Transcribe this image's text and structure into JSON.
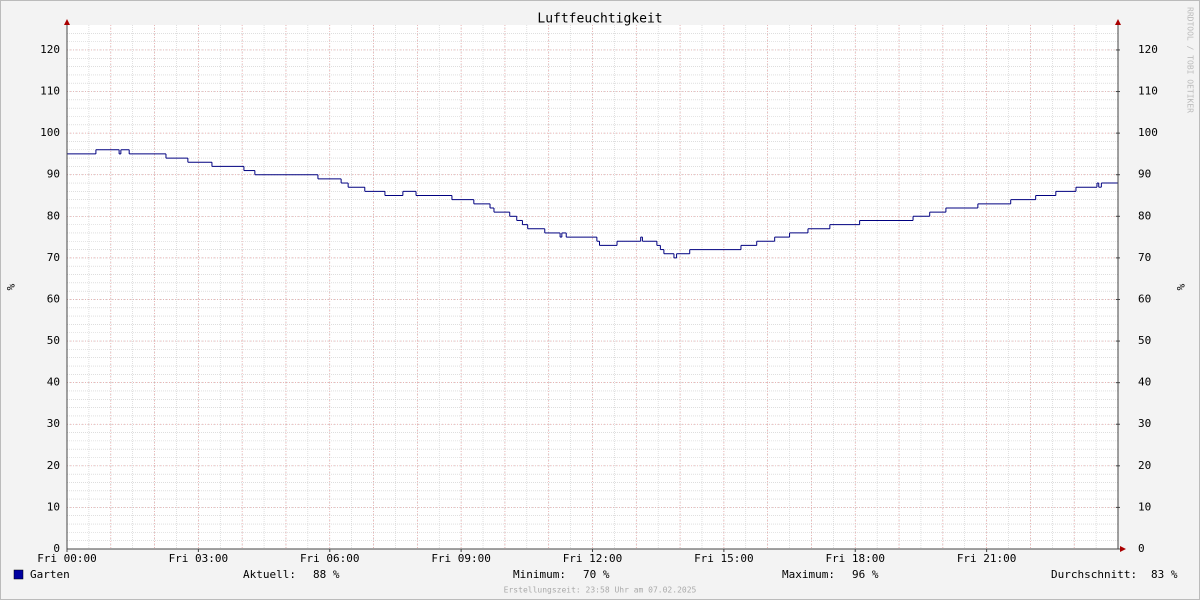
{
  "chart_data": {
    "type": "line",
    "title": "Luftfeuchtigkeit",
    "ylabel": "%",
    "y2label": "%",
    "xlim": [
      0,
      24
    ],
    "xticks": [
      {
        "value": 0,
        "label": "Fri 00:00"
      },
      {
        "value": 3,
        "label": "Fri 03:00"
      },
      {
        "value": 6,
        "label": "Fri 06:00"
      },
      {
        "value": 9,
        "label": "Fri 09:00"
      },
      {
        "value": 12,
        "label": "Fri 12:00"
      },
      {
        "value": 15,
        "label": "Fri 15:00"
      },
      {
        "value": 18,
        "label": "Fri 18:00"
      },
      {
        "value": 21,
        "label": "Fri 21:00"
      }
    ],
    "ylim": [
      0,
      126
    ],
    "yticks": [
      0,
      10,
      20,
      30,
      40,
      50,
      60,
      70,
      80,
      90,
      100,
      110,
      120
    ],
    "y2lim": [
      0,
      126
    ],
    "y2ticks": [
      0,
      10,
      20,
      30,
      40,
      50,
      60,
      70,
      80,
      90,
      100,
      110,
      120
    ],
    "grid": true,
    "x_major_grid_step": 1,
    "x_minor_grid_step": 0.5,
    "y_minor_grid_step": 2,
    "step": true,
    "series": [
      {
        "name": "Garten",
        "color": "#000080",
        "legend_color": "#0000a0",
        "x": [
          0,
          0.66,
          1.19,
          1.23,
          1.42,
          2.26,
          2.76,
          3.31,
          4.04,
          4.29,
          5.73,
          6.26,
          6.42,
          6.8,
          7.26,
          7.67,
          7.97,
          8.79,
          9.29,
          9.66,
          9.75,
          10.11,
          10.27,
          10.4,
          10.52,
          10.91,
          11.26,
          11.3,
          11.4,
          12.1,
          12.16,
          12.56,
          13.1,
          13.14,
          13.47,
          13.55,
          13.63,
          13.86,
          13.92,
          14.22,
          15.39,
          15.75,
          16.16,
          16.5,
          16.92,
          17.42,
          18.1,
          19.32,
          19.7,
          20.07,
          20.8,
          21.55,
          22.12,
          22.58,
          23.04,
          23.52,
          23.56,
          23.62,
          24
        ],
        "values": [
          95,
          96,
          95,
          96,
          95,
          94,
          93,
          92,
          91,
          90,
          89,
          88,
          87,
          86,
          85,
          86,
          85,
          84,
          83,
          82,
          81,
          80,
          79,
          78,
          77,
          76,
          75,
          76,
          75,
          74,
          73,
          74,
          75,
          74,
          73,
          72,
          71,
          70,
          71,
          72,
          73,
          74,
          75,
          76,
          77,
          78,
          79,
          80,
          81,
          82,
          83,
          84,
          85,
          86,
          87,
          88,
          87,
          88,
          88
        ]
      }
    ],
    "stats": [
      {
        "label": "Aktuell:",
        "value": "88 %"
      },
      {
        "label": "Minimum:",
        "value": "70 %"
      },
      {
        "label": "Maximum:",
        "value": "96 %"
      },
      {
        "label": "Durchschnitt:",
        "value": "83 %"
      }
    ],
    "footer": "Erstellungszeit: 23:58 Uhr am 07.02.2025",
    "watermark": "RRDTOOL / TOBI OETIKER"
  }
}
